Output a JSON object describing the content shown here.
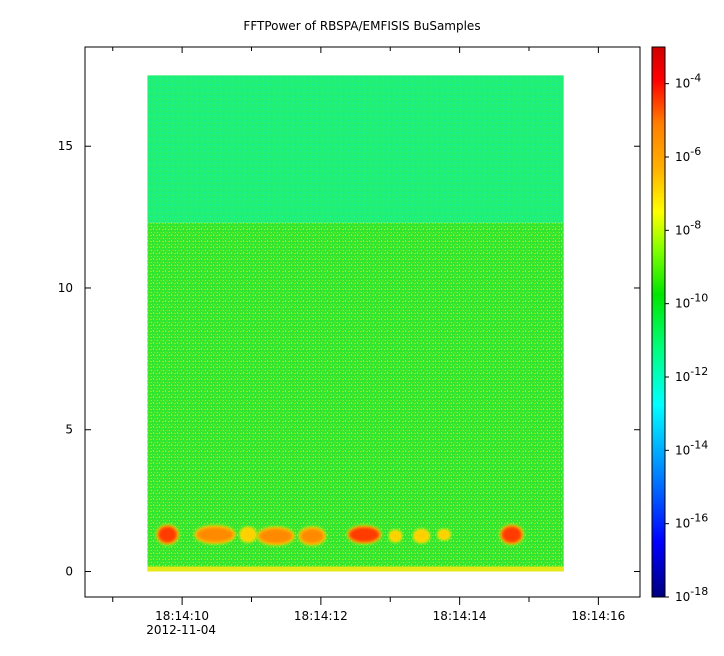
{
  "chart_data": {
    "type": "heatmap",
    "title": "FFTPower of RBSPA/EMFISIS  BuSamples",
    "xlabel": "",
    "ylabel": "",
    "x_ticks": [
      {
        "value": 10,
        "label": "18:14:10",
        "sublabel": "2012-11-04"
      },
      {
        "value": 12,
        "label": "18:14:12",
        "sublabel": ""
      },
      {
        "value": 14,
        "label": "18:14:14",
        "sublabel": ""
      },
      {
        "value": 16,
        "label": "18:14:16",
        "sublabel": ""
      }
    ],
    "x_minor_ticks": [
      9,
      11,
      13,
      15
    ],
    "xlim": [
      8.6,
      16.6
    ],
    "y_ticks": [
      0,
      5,
      10,
      15
    ],
    "ylim": [
      -0.9,
      18.5
    ],
    "data_extent": {
      "x": [
        9.5,
        15.5
      ],
      "y": [
        0,
        17.5
      ]
    },
    "y_transition": 12.3,
    "colorbar": {
      "scale": "log",
      "range": [
        1e-18,
        0.001
      ],
      "ticks": [
        {
          "exp": -4,
          "label": "10",
          "sup": "-4"
        },
        {
          "exp": -6,
          "label": "10",
          "sup": "-6"
        },
        {
          "exp": -8,
          "label": "10",
          "sup": "-8"
        },
        {
          "exp": -10,
          "label": "10",
          "sup": "-10"
        },
        {
          "exp": -12,
          "label": "10",
          "sup": "-12"
        },
        {
          "exp": -14,
          "label": "10",
          "sup": "-14"
        },
        {
          "exp": -16,
          "label": "10",
          "sup": "-16"
        },
        {
          "exp": -18,
          "label": "10",
          "sup": "-18"
        }
      ],
      "colors": [
        "#00007f",
        "#0000ff",
        "#007fff",
        "#00ffff",
        "#00ff7f",
        "#00e600",
        "#7fff00",
        "#ffff00",
        "#ffb000",
        "#ff7f00",
        "#ff0000",
        "#d00000"
      ]
    },
    "bursts": [
      {
        "x": 9.65,
        "y": 1.3,
        "w": 0.28,
        "h": 0.6,
        "level": 0.9
      },
      {
        "x": 10.2,
        "y": 1.3,
        "w": 0.55,
        "h": 0.55,
        "level": 0.85
      },
      {
        "x": 10.85,
        "y": 1.3,
        "w": 0.2,
        "h": 0.45,
        "level": 0.7
      },
      {
        "x": 11.1,
        "y": 1.25,
        "w": 0.5,
        "h": 0.55,
        "level": 0.85
      },
      {
        "x": 11.7,
        "y": 1.25,
        "w": 0.35,
        "h": 0.55,
        "level": 0.85
      },
      {
        "x": 12.4,
        "y": 1.3,
        "w": 0.45,
        "h": 0.55,
        "level": 0.9
      },
      {
        "x": 13.0,
        "y": 1.25,
        "w": 0.15,
        "h": 0.35,
        "level": 0.55
      },
      {
        "x": 13.35,
        "y": 1.25,
        "w": 0.2,
        "h": 0.4,
        "level": 0.65
      },
      {
        "x": 13.7,
        "y": 1.3,
        "w": 0.15,
        "h": 0.3,
        "level": 0.5
      },
      {
        "x": 14.6,
        "y": 1.3,
        "w": 0.3,
        "h": 0.6,
        "level": 0.9
      }
    ]
  }
}
